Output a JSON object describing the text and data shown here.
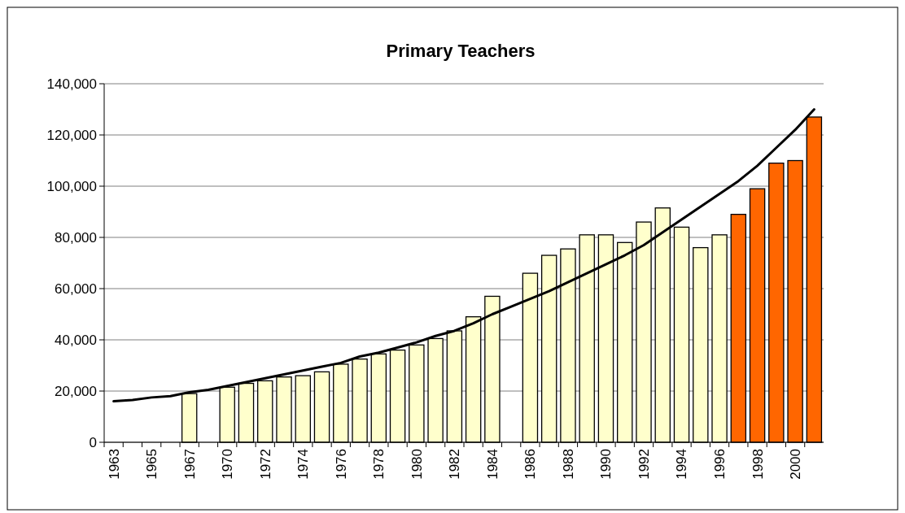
{
  "chart_data": {
    "type": "bar",
    "title": "Primary Teachers",
    "categories": [
      "1963",
      null,
      "1965",
      null,
      "1967",
      null,
      "1970",
      null,
      "1972",
      null,
      "1974",
      null,
      "1976",
      null,
      "1978",
      null,
      "1980",
      null,
      "1982",
      null,
      "1984",
      null,
      "1986",
      null,
      "1988",
      null,
      "1990",
      null,
      "1992",
      null,
      "1994",
      null,
      "1996",
      null,
      "1998",
      null,
      "2000",
      null
    ],
    "series": [
      {
        "values": [
          null,
          null,
          null,
          null,
          19000,
          null,
          21500,
          23000,
          24000,
          25500,
          26000,
          27500,
          30500,
          32500,
          34500,
          36000,
          38000,
          40500,
          43500,
          49000,
          57000,
          null,
          66000,
          73000,
          75500,
          81000,
          81000,
          78000,
          86000,
          91500,
          84000,
          76000,
          81000,
          89000,
          99000,
          109000,
          110000,
          127000
        ],
        "colors": [
          null,
          null,
          null,
          null,
          "#ffffcc",
          null,
          "#ffffcc",
          "#ffffcc",
          "#ffffcc",
          "#ffffcc",
          "#ffffcc",
          "#ffffcc",
          "#ffffcc",
          "#ffffcc",
          "#ffffcc",
          "#ffffcc",
          "#ffffcc",
          "#ffffcc",
          "#ffffcc",
          "#ffffcc",
          "#ffffcc",
          null,
          "#ffffcc",
          "#ffffcc",
          "#ffffcc",
          "#ffffcc",
          "#ffffcc",
          "#ffffcc",
          "#ffffcc",
          "#ffffcc",
          "#ffffcc",
          "#ffffcc",
          "#ffffcc",
          "#ff6600",
          "#ff6600",
          "#ff6600",
          "#ff6600",
          "#ff6600"
        ]
      },
      {
        "type": "line",
        "color": "#000000",
        "values": [
          16000,
          16500,
          17500,
          18000,
          19500,
          20500,
          22000,
          23500,
          25000,
          26500,
          28000,
          29500,
          31000,
          33500,
          35000,
          37000,
          39000,
          41500,
          43500,
          46500,
          50000,
          53000,
          56000,
          59000,
          62500,
          66000,
          69500,
          73000,
          77000,
          82000,
          87000,
          92000,
          97000,
          102000,
          108000,
          115000,
          122000,
          130000
        ]
      }
    ],
    "ylim": [
      0,
      140000
    ],
    "yticks": [
      {
        "value": 0,
        "label": "0"
      },
      {
        "value": 20000,
        "label": "20,000"
      },
      {
        "value": 40000,
        "label": "40,000"
      },
      {
        "value": 60000,
        "label": "60,000"
      },
      {
        "value": 80000,
        "label": "80,000"
      },
      {
        "value": 100000,
        "label": "100,000"
      },
      {
        "value": 120000,
        "label": "120,000"
      },
      {
        "value": 140000,
        "label": "140,000"
      }
    ],
    "grid": "y"
  }
}
